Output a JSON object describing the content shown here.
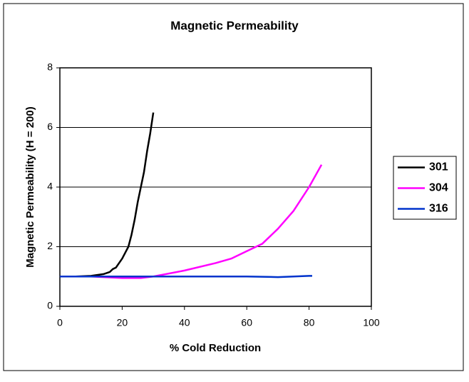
{
  "chart_data": {
    "type": "line",
    "title": "Magnetic Permeability",
    "x_label": "% Cold Reduction",
    "y_label": "Magnetic Permeability (H = 200)",
    "xlim": [
      0,
      100
    ],
    "xticks": [
      0,
      20,
      40,
      60,
      80,
      100
    ],
    "ylim": [
      0,
      8
    ],
    "yticks": [
      0,
      2,
      4,
      6,
      8
    ],
    "grid": true,
    "legend": "right",
    "series": [
      {
        "name": "301",
        "color": "#000000",
        "x": [
          0,
          5,
          10,
          14,
          16,
          17,
          18,
          19,
          20,
          21,
          22,
          23,
          24,
          25,
          26,
          27,
          28,
          29,
          30
        ],
        "values": [
          1.0,
          1.0,
          1.02,
          1.08,
          1.15,
          1.25,
          1.3,
          1.45,
          1.6,
          1.8,
          2.0,
          2.4,
          2.9,
          3.5,
          4.0,
          4.5,
          5.2,
          5.8,
          6.5
        ]
      },
      {
        "name": "304",
        "color": "#ff00ff",
        "x": [
          0,
          10,
          20,
          26,
          30,
          40,
          50,
          55,
          60,
          65,
          70,
          75,
          80,
          84
        ],
        "values": [
          1.0,
          1.0,
          0.95,
          0.95,
          1.0,
          1.2,
          1.45,
          1.6,
          1.85,
          2.1,
          2.6,
          3.2,
          4.0,
          4.75
        ]
      },
      {
        "name": "316",
        "color": "#0033cc",
        "x": [
          0,
          10,
          20,
          30,
          40,
          50,
          60,
          70,
          75,
          80,
          81
        ],
        "values": [
          1.0,
          1.0,
          1.0,
          1.0,
          1.0,
          1.0,
          1.0,
          0.98,
          1.0,
          1.02,
          1.02
        ]
      }
    ]
  }
}
